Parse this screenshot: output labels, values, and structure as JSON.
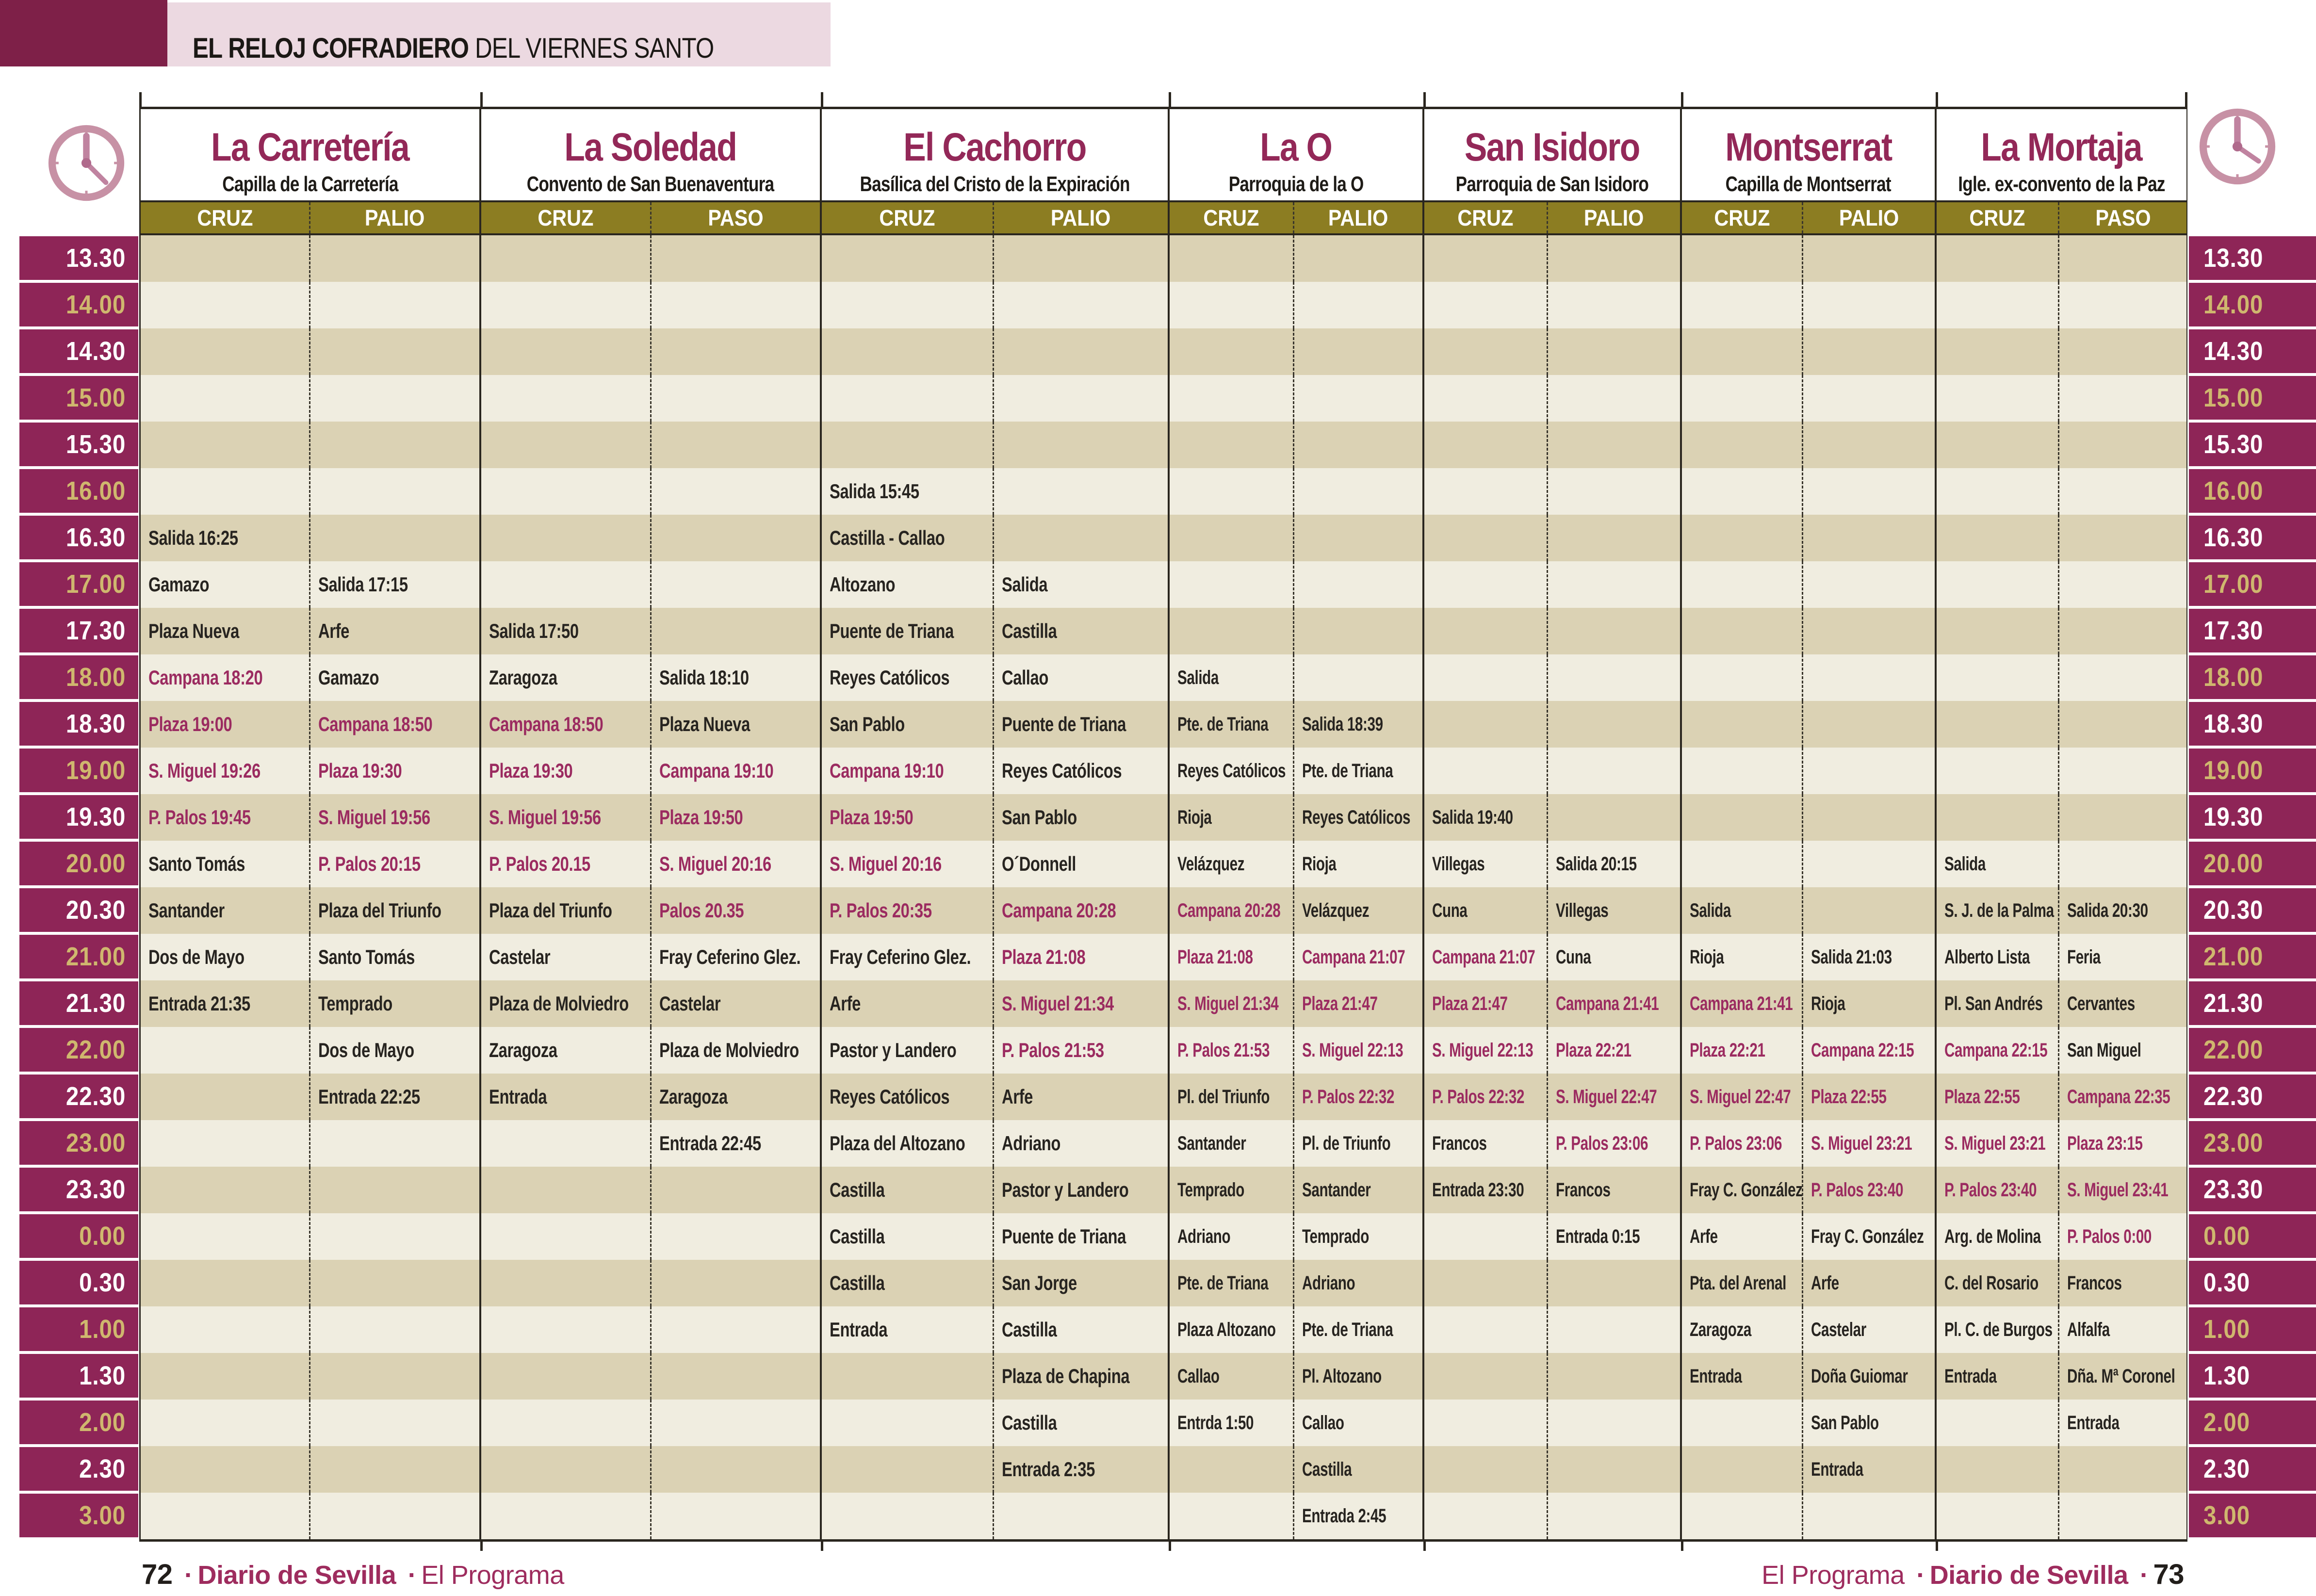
{
  "title": {
    "bold": "EL RELOJ COFRADIERO",
    "regular": "DEL VIERNES SANTO"
  },
  "icons": {
    "top_left": "clock-icon",
    "top_right": "clock-icon"
  },
  "times": [
    "13.30",
    "14.00",
    "14.30",
    "15.00",
    "15.30",
    "16.00",
    "16.30",
    "17.00",
    "17.30",
    "18.00",
    "18.30",
    "19.00",
    "19.30",
    "20.00",
    "20.30",
    "21.00",
    "21.30",
    "22.00",
    "22.30",
    "23.00",
    "23.30",
    "0.00",
    "0.30",
    "1.00",
    "1.30",
    "2.00",
    "2.30",
    "3.00"
  ],
  "groups": [
    {
      "name": "La Carretería",
      "subtitle": "Capilla de la Carretería",
      "columns": [
        {
          "label": "CRUZ",
          "cells": {
            "16.30": "Salida 16:25",
            "17.00": "Gamazo",
            "17.30": "Plaza Nueva",
            "18.00": {
              "text": "Campana 18:20",
              "highlight": true
            },
            "18.30": {
              "text": "Plaza 19:00",
              "highlight": true
            },
            "19.00": {
              "text": "S. Miguel 19:26",
              "highlight": true
            },
            "19.30": {
              "text": "P. Palos 19:45",
              "highlight": true
            },
            "20.00": "Santo Tomás",
            "20.30": "Santander",
            "21.00": "Dos de Mayo",
            "21.30": "Entrada 21:35"
          }
        },
        {
          "label": "PALIO",
          "cells": {
            "17.00": "Salida 17:15",
            "17.30": "Arfe",
            "18.00": "Gamazo",
            "18.30": {
              "text": "Campana 18:50",
              "highlight": true
            },
            "19.00": {
              "text": "Plaza 19:30",
              "highlight": true
            },
            "19.30": {
              "text": "S. Miguel 19:56",
              "highlight": true
            },
            "20.00": {
              "text": "P. Palos 20:15",
              "highlight": true
            },
            "20.30": "Plaza del Triunfo",
            "21.00": "Santo Tomás",
            "21.30": "Temprado",
            "22.00": "Dos de Mayo",
            "22.30": "Entrada 22:25"
          }
        }
      ]
    },
    {
      "name": "La Soledad",
      "subtitle": "Convento de San Buenaventura",
      "columns": [
        {
          "label": "CRUZ",
          "cells": {
            "17.30": "Salida 17:50",
            "18.00": "Zaragoza",
            "18.30": {
              "text": "Campana 18:50",
              "highlight": true
            },
            "19.00": {
              "text": "Plaza 19:30",
              "highlight": true
            },
            "19.30": {
              "text": "S. Miguel 19:56",
              "highlight": true
            },
            "20.00": {
              "text": "P. Palos 20.15",
              "highlight": true
            },
            "20.30": "Plaza del Triunfo",
            "21.00": "Castelar",
            "21.30": "Plaza de Molviedro",
            "22.00": "Zaragoza",
            "22.30": "Entrada"
          }
        },
        {
          "label": "PASO",
          "cells": {
            "18.00": "Salida 18:10",
            "18.30": "Plaza Nueva",
            "19.00": {
              "text": "Campana 19:10",
              "highlight": true
            },
            "19.30": {
              "text": "Plaza 19:50",
              "highlight": true
            },
            "20.00": {
              "text": "S. Miguel 20:16",
              "highlight": true
            },
            "20.30": {
              "text": "Palos 20.35",
              "highlight": true
            },
            "21.00": "Fray Ceferino Glez.",
            "21.30": "Castelar",
            "22.00": "Plaza de Molviedro",
            "22.30": "Zaragoza",
            "23.00": "Entrada 22:45"
          }
        }
      ]
    },
    {
      "name": "El Cachorro",
      "subtitle": "Basílica del Cristo de la Expiración",
      "columns": [
        {
          "label": "CRUZ",
          "cells": {
            "16.00": "Salida 15:45",
            "16.30": "Castilla - Callao",
            "17.00": "Altozano",
            "17.30": "Puente de Triana",
            "18.00": "Reyes Católicos",
            "18.30": "San Pablo",
            "19.00": {
              "text": "Campana 19:10",
              "highlight": true
            },
            "19.30": {
              "text": "Plaza 19:50",
              "highlight": true
            },
            "20.00": {
              "text": "S. Miguel 20:16",
              "highlight": true
            },
            "20.30": {
              "text": "P. Palos 20:35",
              "highlight": true
            },
            "21.00": "Fray Ceferino Glez.",
            "21.30": "Arfe",
            "22.00": "Pastor y Landero",
            "22.30": "Reyes Católicos",
            "23.00": "Plaza del Altozano",
            "23.30": "Castilla",
            "0.00": "Castilla",
            "0.30": "Castilla",
            "1.00": "Entrada"
          }
        },
        {
          "label": "PALIO",
          "cells": {
            "17.00": "Salida",
            "17.30": "Castilla",
            "18.00": "Callao",
            "18.30": "Puente de Triana",
            "19.00": "Reyes Católicos",
            "19.30": "San Pablo",
            "20.00": "O´Donnell",
            "20.30": {
              "text": "Campana 20:28",
              "highlight": true
            },
            "21.00": {
              "text": "Plaza 21:08",
              "highlight": true
            },
            "21.30": {
              "text": "S. Miguel 21:34",
              "highlight": true
            },
            "22.00": {
              "text": "P. Palos 21:53",
              "highlight": true
            },
            "22.30": "Arfe",
            "23.00": "Adriano",
            "23.30": "Pastor y Landero",
            "0.00": "Puente de Triana",
            "0.30": "San Jorge",
            "1.00": "Castilla",
            "1.30": "Plaza de Chapina",
            "2.00": "Castilla",
            "2.30": "Entrada 2:35"
          }
        }
      ]
    },
    {
      "name": "La O",
      "subtitle": "Parroquia de la O",
      "columns": [
        {
          "label": "CRUZ",
          "cells": {
            "18.00": "Salida",
            "18.30": "Pte. de Triana",
            "19.00": "Reyes Católicos",
            "19.30": "Rioja",
            "20.00": "Velázquez",
            "20.30": {
              "text": "Campana 20:28",
              "highlight": true
            },
            "21.00": {
              "text": "Plaza 21:08",
              "highlight": true
            },
            "21.30": {
              "text": "S. Miguel 21:34",
              "highlight": true
            },
            "22.00": {
              "text": "P. Palos 21:53",
              "highlight": true
            },
            "22.30": "Pl. del Triunfo",
            "23.00": "Santander",
            "23.30": "Temprado",
            "0.00": "Adriano",
            "0.30": "Pte. de Triana",
            "1.00": "Plaza Altozano",
            "1.30": "Callao",
            "2.00": "Entrda 1:50"
          }
        },
        {
          "label": "PALIO",
          "cells": {
            "18.30": "Salida 18:39",
            "19.00": "Pte. de Triana",
            "19.30": "Reyes Católicos",
            "20.00": "Rioja",
            "20.30": "Velázquez",
            "21.00": {
              "text": "Campana 21:07",
              "highlight": true
            },
            "21.30": {
              "text": "Plaza 21:47",
              "highlight": true
            },
            "22.00": {
              "text": "S. Miguel 22:13",
              "highlight": true
            },
            "22.30": {
              "text": "P. Palos 22:32",
              "highlight": true
            },
            "23.00": "Pl. de Triunfo",
            "23.30": "Santander",
            "0.00": "Temprado",
            "0.30": "Adriano",
            "1.00": "Pte. de Triana",
            "1.30": "Pl. Altozano",
            "2.00": "Callao",
            "2.30": "Castilla",
            "3.00": "Entrada 2:45"
          }
        }
      ]
    },
    {
      "name": "San Isidoro",
      "subtitle": "Parroquia de San Isidoro",
      "columns": [
        {
          "label": "CRUZ",
          "cells": {
            "19.30": "Salida 19:40",
            "20.00": "Villegas",
            "20.30": "Cuna",
            "21.00": {
              "text": "Campana 21:07",
              "highlight": true
            },
            "21.30": {
              "text": "Plaza 21:47",
              "highlight": true
            },
            "22.00": {
              "text": "S. Miguel 22:13",
              "highlight": true
            },
            "22.30": {
              "text": "P. Palos 22:32",
              "highlight": true
            },
            "23.00": "Francos",
            "23.30": "Entrada 23:30"
          }
        },
        {
          "label": "PALIO",
          "cells": {
            "20.00": "Salida 20:15",
            "20.30": "Villegas",
            "21.00": "Cuna",
            "21.30": {
              "text": "Campana 21:41",
              "highlight": true
            },
            "22.00": {
              "text": "Plaza 22:21",
              "highlight": true
            },
            "22.30": {
              "text": "S. Miguel 22:47",
              "highlight": true
            },
            "23.00": {
              "text": "P. Palos 23:06",
              "highlight": true
            },
            "23.30": "Francos",
            "0.00": "Entrada 0:15"
          }
        }
      ]
    },
    {
      "name": "Montserrat",
      "subtitle": "Capilla de Montserrat",
      "columns": [
        {
          "label": "CRUZ",
          "cells": {
            "20.30": "Salida",
            "21.00": "Rioja",
            "21.30": {
              "text": "Campana 21:41",
              "highlight": true
            },
            "22.00": {
              "text": "Plaza 22:21",
              "highlight": true
            },
            "22.30": {
              "text": "S. Miguel 22:47",
              "highlight": true
            },
            "23.00": {
              "text": "P. Palos 23:06",
              "highlight": true
            },
            "23.30": "Fray C. González",
            "0.00": "Arfe",
            "0.30": "Pta. del Arenal",
            "1.00": "Zaragoza",
            "1.30": "Entrada"
          }
        },
        {
          "label": "PALIO",
          "cells": {
            "21.00": "Salida 21:03",
            "21.30": "Rioja",
            "22.00": {
              "text": "Campana 22:15",
              "highlight": true
            },
            "22.30": {
              "text": "Plaza 22:55",
              "highlight": true
            },
            "23.00": {
              "text": "S. Miguel 23:21",
              "highlight": true
            },
            "23.30": {
              "text": "P. Palos 23:40",
              "highlight": true
            },
            "0.00": "Fray C. González",
            "0.30": "Arfe",
            "1.00": "Castelar",
            "1.30": "Doña Guiomar",
            "2.00": "San Pablo",
            "2.30": "Entrada"
          }
        }
      ]
    },
    {
      "name": "La Mortaja",
      "subtitle": "Igle. ex-convento de la Paz",
      "columns": [
        {
          "label": "CRUZ",
          "cells": {
            "20.00": "Salida",
            "20.30": "S. J. de la Palma",
            "21.00": "Alberto Lista",
            "21.30": "Pl. San Andrés",
            "22.00": {
              "text": "Campana 22:15",
              "highlight": true
            },
            "22.30": {
              "text": "Plaza 22:55",
              "highlight": true
            },
            "23.00": {
              "text": "S. Miguel 23:21",
              "highlight": true
            },
            "23.30": {
              "text": "P. Palos 23:40",
              "highlight": true
            },
            "0.00": "Arg. de Molina",
            "0.30": "C. del Rosario",
            "1.00": "Pl. C. de Burgos",
            "1.30": "Entrada"
          }
        },
        {
          "label": "PASO",
          "cells": {
            "20.30": "Salida 20:30",
            "21.00": "Feria",
            "21.30": "Cervantes",
            "22.00": "San Miguel",
            "22.30": {
              "text": "Campana 22:35",
              "highlight": true
            },
            "23.00": {
              "text": "Plaza 23:15",
              "highlight": true
            },
            "23.30": {
              "text": "S. Miguel 23:41",
              "highlight": true
            },
            "0.00": {
              "text": "P. Palos 0:00",
              "highlight": true
            },
            "0.30": "Francos",
            "1.00": "Alfalfa",
            "1.30": "Dña. Mª Coronel",
            "2.00": "Entrada"
          }
        }
      ]
    }
  ],
  "footer": {
    "left_page": "72",
    "right_page": "73",
    "brand": "Diario de Sevilla",
    "program": "El Programa",
    "dot": "·"
  },
  "colors": {
    "maroon_rail": "#8E2557",
    "corner_block": "#7E2048",
    "pink_band": "#ECD9E1",
    "gold_time": "#CFB76E",
    "olive_bar": "#8C7D22",
    "stripe_dark": "#DBD2B4",
    "stripe_light": "#F0EDE0",
    "highlight_text": "#9B2B60",
    "brotherhood_name": "#932858",
    "footer_maroon": "#9E2C5E",
    "clock_pink": "#C791A5"
  }
}
